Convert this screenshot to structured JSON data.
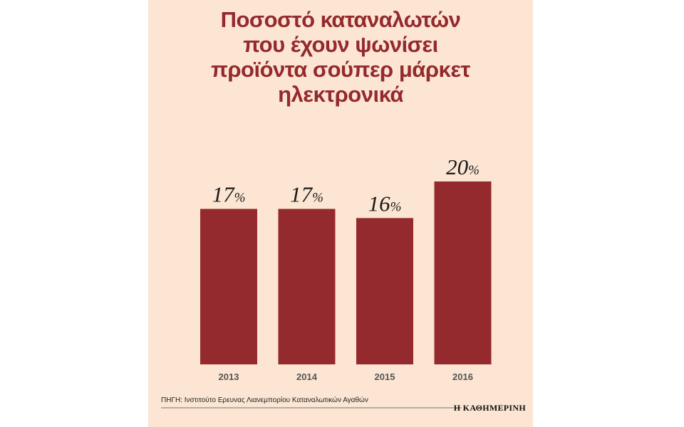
{
  "header": {
    "title_lines": [
      "Ποσοστό καταναλωτών",
      "που έχουν ψωνίσει",
      "προϊόντα σούπερ μάρκετ",
      "ηλεκτρονικά"
    ]
  },
  "chart_data": {
    "type": "bar",
    "title": "Ποσοστό καταναλωτών που έχουν ψωνίσει προϊόντα σούπερ μάρκετ ηλεκτρονικά",
    "categories": [
      "2013",
      "2014",
      "2015",
      "2016"
    ],
    "values": [
      17,
      17,
      16,
      20
    ],
    "unit": "%",
    "value_suffix": "%",
    "xlabel": "",
    "ylabel": "",
    "ylim": [
      0,
      23.5
    ],
    "grid": false,
    "bar_color": "#94292e"
  },
  "footer": {
    "source": "ΠΗΓΗ: Ινστιτούτο Ερευνας Λιανεμπορίου Καταναλωτικών Αγαθών",
    "brand": "Η ΚΑΘΗΜΕΡΙΝΗ"
  },
  "colors": {
    "background": "#fce6d3",
    "title": "#94292e",
    "bar": "#94292e"
  }
}
